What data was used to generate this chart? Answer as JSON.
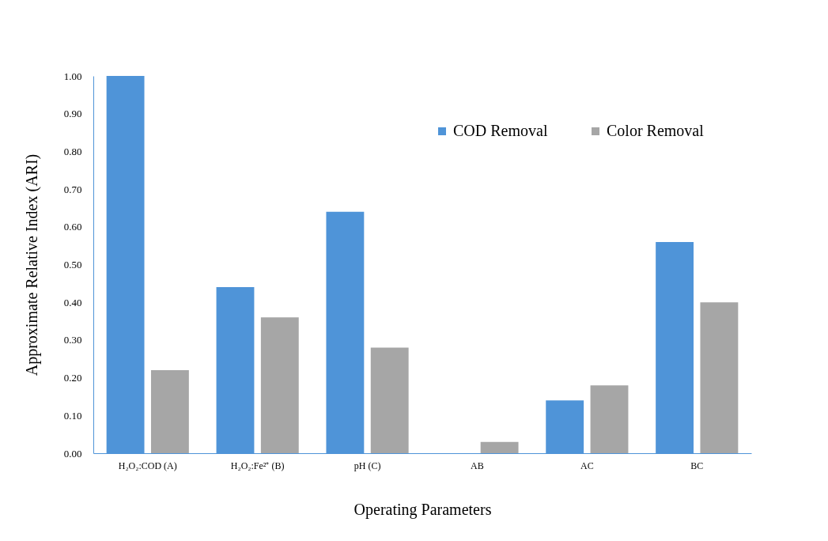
{
  "chart_data": {
    "type": "bar",
    "xlabel": "Operating Parameters",
    "ylabel": "Approximate Relative Index (ARI)",
    "categories": [
      "H₂O₂:COD (A)",
      "H₂O₂:Fe²⁺ (B)",
      "pH (C)",
      "AB",
      "AC",
      "BC"
    ],
    "series": [
      {
        "name": "COD Removal",
        "color": "#4f94d8",
        "values": [
          1.0,
          0.44,
          0.64,
          0,
          0.14,
          0.56
        ]
      },
      {
        "name": "Color Removal",
        "color": "#a6a6a6",
        "values": [
          0.22,
          0.36,
          0.28,
          0.03,
          0.18,
          0.4
        ]
      }
    ],
    "ylim": [
      0,
      1.0
    ],
    "yticks": [
      {
        "value": 0,
        "label": "0.00"
      },
      {
        "value": 0.1,
        "label": "0.10"
      },
      {
        "value": 0.2,
        "label": "0.20"
      },
      {
        "value": 0.3,
        "label": "0.30"
      },
      {
        "value": 0.4,
        "label": "0.40"
      },
      {
        "value": 0.5,
        "label": "0.50"
      },
      {
        "value": 0.6,
        "label": "0.60"
      },
      {
        "value": 0.7,
        "label": "0.70"
      },
      {
        "value": 0.8,
        "label": "0.80"
      },
      {
        "value": 0.9,
        "label": "0.90"
      },
      {
        "value": 1.0,
        "label": "1.00"
      }
    ],
    "grid": false,
    "legend": "top right"
  }
}
